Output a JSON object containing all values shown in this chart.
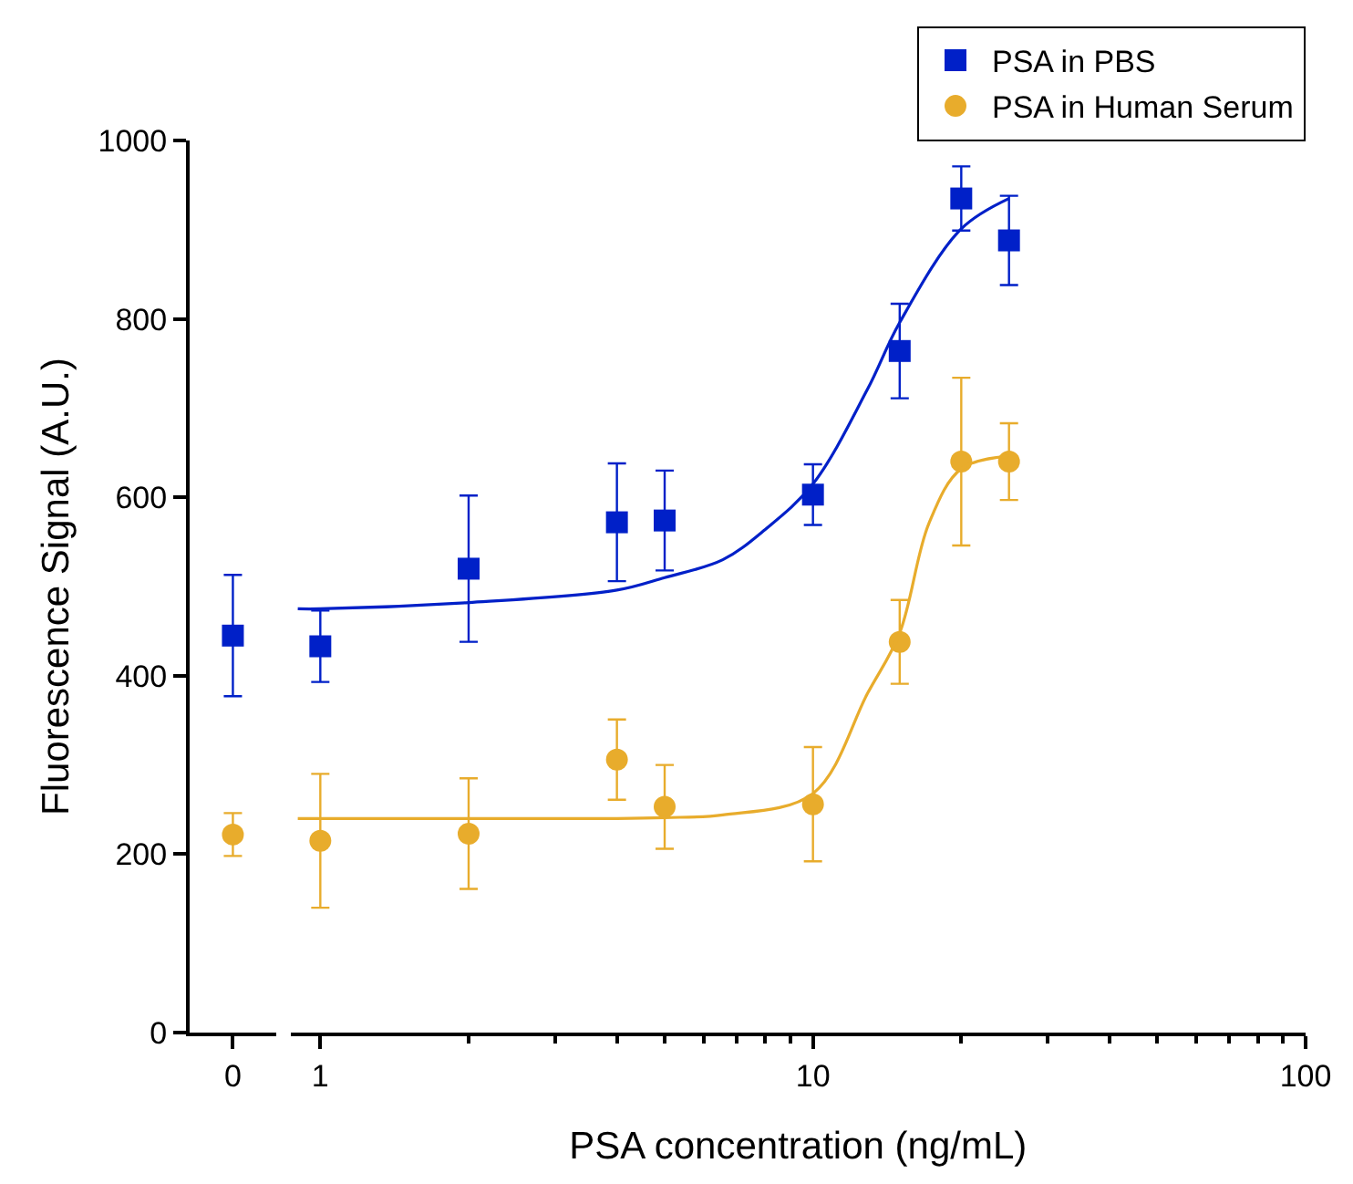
{
  "chart_data": [
    {
      "type": "scatter",
      "categories": [
        "0"
      ],
      "ylabel": "Fluorescence Signal (A.U.)",
      "ylim": [
        0,
        1000
      ],
      "yticks": [
        0,
        200,
        400,
        600,
        800,
        1000
      ],
      "series": [
        {
          "color": "#0020c8",
          "marker": "square",
          "values": [
            445
          ],
          "errors": [
            68
          ]
        },
        {
          "color": "#e8ac2c",
          "marker": "circle",
          "values": [
            222
          ],
          "errors": [
            24
          ]
        }
      ]
    },
    {
      "type": "scatter",
      "xlabel": "PSA concentration (ng/mL)",
      "log": "x",
      "xlim": [
        0.87,
        100
      ],
      "xticks": [
        1,
        {
          "value": 2,
          "label": null
        },
        {
          "value": 3,
          "label": null
        },
        {
          "value": 4,
          "label": null
        },
        {
          "value": 5,
          "label": null
        },
        {
          "value": 6,
          "label": null
        },
        {
          "value": 7,
          "label": null
        },
        {
          "value": 8,
          "label": null
        },
        {
          "value": 9,
          "label": null
        },
        10,
        {
          "value": 20,
          "label": null
        },
        {
          "value": 30,
          "label": null
        },
        {
          "value": 40,
          "label": null
        },
        {
          "value": 50,
          "label": null
        },
        {
          "value": 60,
          "label": null
        },
        {
          "value": 70,
          "label": null
        },
        {
          "value": 80,
          "label": null
        },
        {
          "value": 90,
          "label": null
        },
        100
      ],
      "ylim": [
        0,
        1000
      ],
      "yticks": [
        0,
        200,
        400,
        600,
        800,
        1000
      ],
      "tick_labels": "x",
      "legend": "top right",
      "series": [
        {
          "name": "PSA in PBS",
          "color": "#0020c8",
          "marker": "square",
          "x": [
            1,
            2,
            4,
            5,
            10,
            15,
            20,
            25
          ],
          "values": [
            433,
            520,
            572,
            574,
            603,
            764,
            935,
            888
          ],
          "errors": [
            40,
            82,
            66,
            56,
            34,
            53,
            36,
            50
          ]
        },
        {
          "name": "PSA in Human Serum",
          "color": "#e8ac2c",
          "marker": "circle",
          "x": [
            1,
            2,
            4,
            5,
            10,
            15,
            20,
            25
          ],
          "values": [
            215,
            223,
            306,
            253,
            256,
            438,
            640,
            640
          ],
          "errors": [
            75,
            62,
            45,
            47,
            64,
            47,
            94,
            43
          ]
        },
        {
          "type": "line",
          "color": "#0020c8",
          "marker": "none",
          "x": [
            0.9,
            1,
            2,
            4,
            5,
            6.56,
            8,
            10,
            12.9,
            15,
            20,
            25
          ],
          "values": [
            475,
            475,
            482,
            496,
            510,
            530,
            564,
            615,
            721,
            796,
            901,
            935
          ]
        },
        {
          "type": "line",
          "color": "#e8ac2c",
          "marker": "none",
          "x": [
            0.9,
            1,
            2,
            4,
            5,
            6.56,
            10,
            12.9,
            15,
            17.2,
            20,
            25
          ],
          "values": [
            240,
            240,
            240,
            240,
            241,
            244,
            268,
            380,
            448,
            571,
            632,
            646
          ]
        }
      ]
    }
  ]
}
